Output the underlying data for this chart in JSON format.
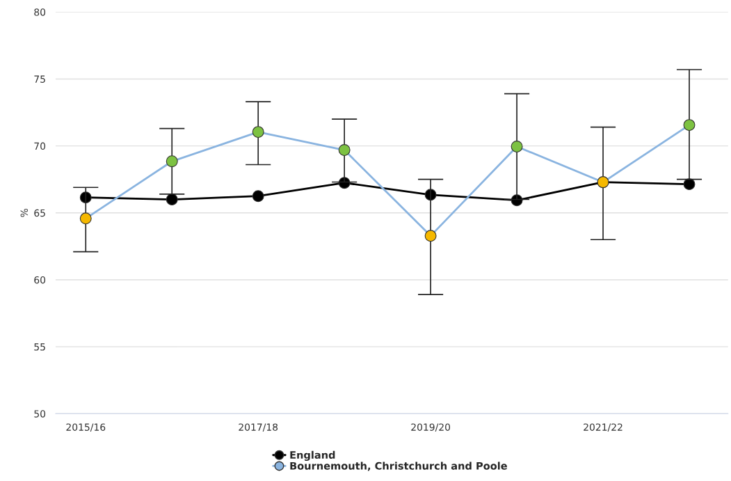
{
  "chart_data": {
    "type": "line",
    "ylabel": "%",
    "categories": [
      "2015/16",
      null,
      "2017/18",
      null,
      "2019/20",
      null,
      "2021/22",
      null
    ],
    "series": [
      {
        "name": "England",
        "color": "#000000",
        "values": [
          66.15,
          66.0,
          66.25,
          67.24,
          66.35,
          65.94,
          67.29,
          67.14
        ]
      },
      {
        "name": "Bournemouth, Christchurch and Poole",
        "color": "#8ab4e0",
        "values": [
          64.58,
          68.85,
          71.04,
          69.69,
          63.28,
          69.95,
          67.29,
          71.56
        ],
        "colors": [
          "#f5b800",
          "#7dc242",
          "#7dc242",
          "#7dc242",
          "#f5b800",
          "#7dc242",
          "#f5b800",
          "#7dc242"
        ],
        "errors": [
          [
            62.1,
            66.9
          ],
          [
            66.4,
            71.3
          ],
          [
            68.6,
            73.3
          ],
          [
            67.3,
            72.0
          ],
          [
            58.9,
            67.5
          ],
          [
            66.0,
            73.9
          ],
          [
            63.0,
            71.4
          ],
          [
            67.5,
            75.7
          ]
        ]
      }
    ],
    "ylim": [
      50,
      80
    ],
    "yticks": [
      50,
      55,
      60,
      65,
      70,
      75,
      80
    ],
    "grid": "y",
    "legend": "bottom",
    "marker": "circle",
    "line_style": "solid"
  }
}
